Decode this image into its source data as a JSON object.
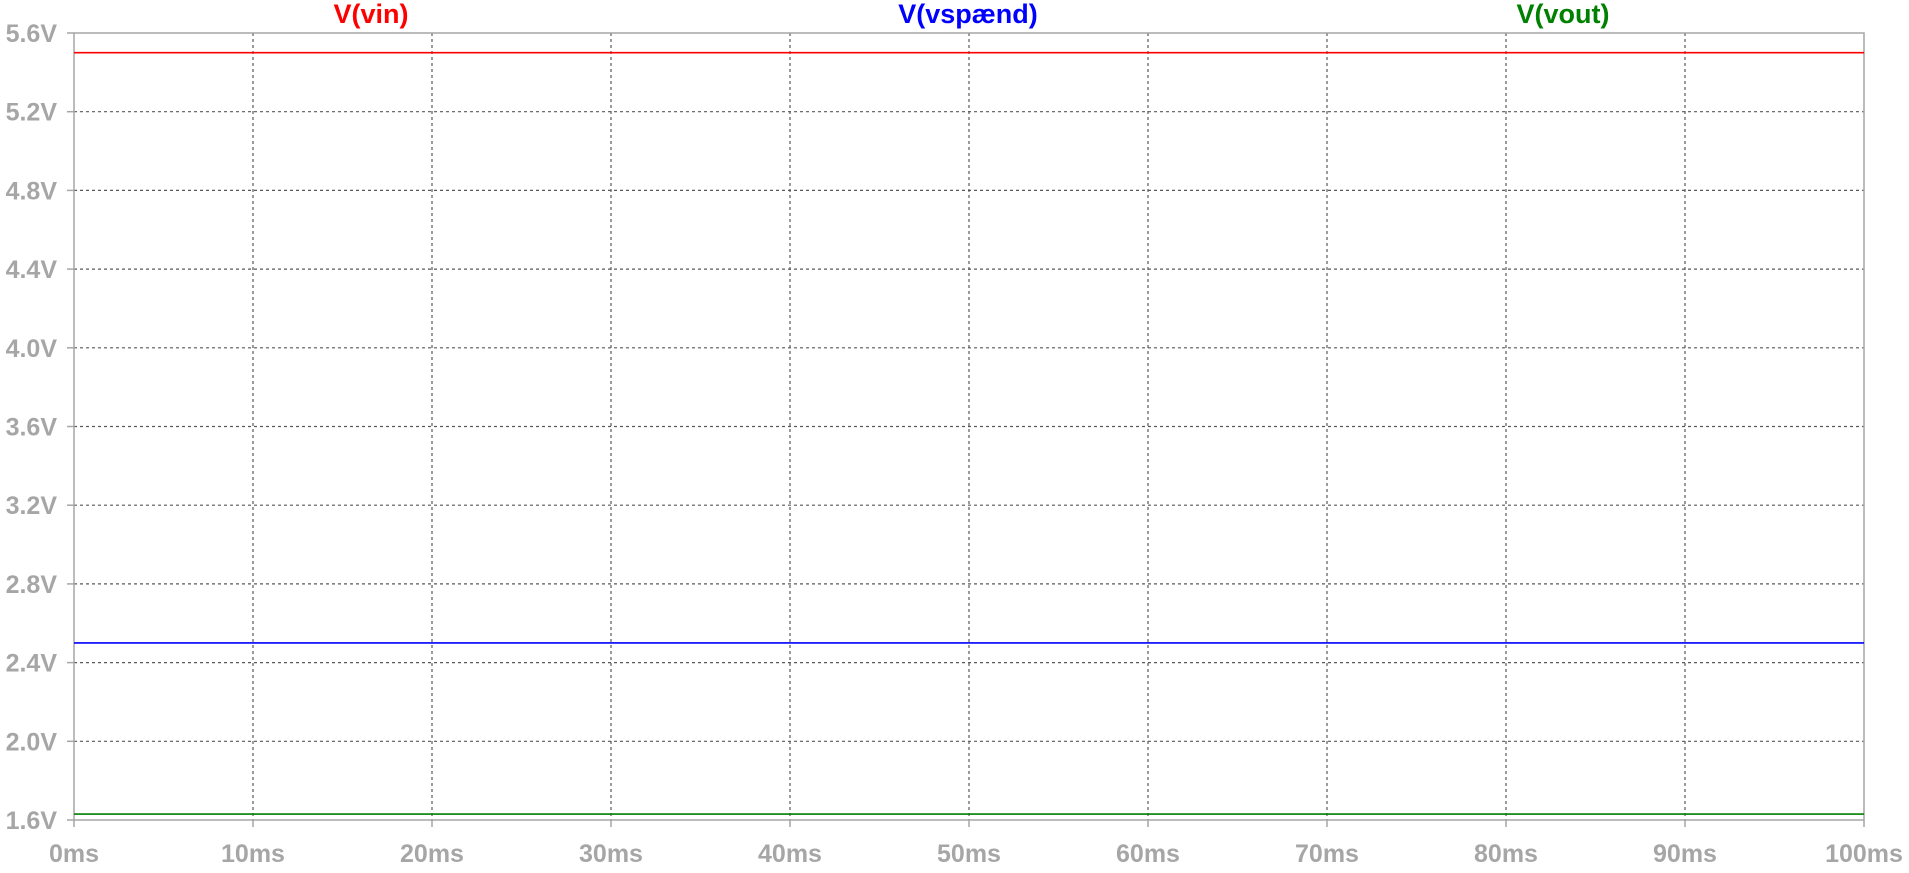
{
  "chart_data": {
    "type": "line",
    "x": [
      0,
      100
    ],
    "x_unit": "ms",
    "y_unit": "V",
    "xlim": [
      0,
      100
    ],
    "ylim": [
      1.6,
      5.6
    ],
    "x_ticks": [
      0,
      10,
      20,
      30,
      40,
      50,
      60,
      70,
      80,
      90,
      100
    ],
    "x_tick_labels": [
      "0ms",
      "10ms",
      "20ms",
      "30ms",
      "40ms",
      "50ms",
      "60ms",
      "70ms",
      "80ms",
      "90ms",
      "100ms"
    ],
    "y_ticks": [
      1.6,
      2.0,
      2.4,
      2.8,
      3.2,
      3.6,
      4.0,
      4.4,
      4.8,
      5.2,
      5.6
    ],
    "y_tick_labels": [
      "1.6V",
      "2.0V",
      "2.4V",
      "2.8V",
      "3.2V",
      "3.6V",
      "4.0V",
      "4.4V",
      "4.8V",
      "5.2V",
      "5.6V"
    ],
    "grid": true,
    "legend_position": "top",
    "series": [
      {
        "name": "V(vin)",
        "color": "#ff0000",
        "values": [
          5.5,
          5.5
        ]
      },
      {
        "name": "V(vspænd)",
        "color": "#0000ff",
        "values": [
          2.5,
          2.5
        ]
      },
      {
        "name": "V(vout)",
        "color": "#008000",
        "values": [
          1.63,
          1.63
        ]
      }
    ],
    "colors": {
      "background": "#ffffff",
      "axis": "#a6a6a6",
      "grid": "#595959",
      "tick_label": "#a6a6a6"
    }
  }
}
